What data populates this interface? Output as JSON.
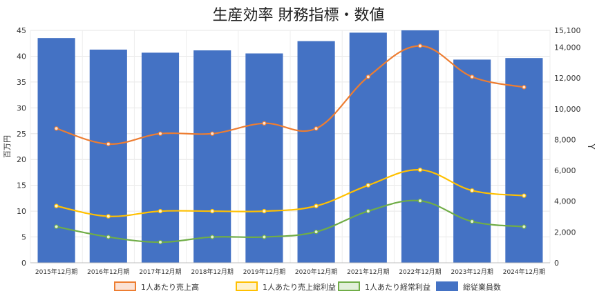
{
  "chart_data": {
    "type": "bar",
    "title": "生産効率 財務指標・数値",
    "ylabel_left": "百万円",
    "ylabel_right": "Y",
    "ylim_left": [
      0,
      45
    ],
    "ylim_right": [
      0,
      15100
    ],
    "left_ticks": [
      "0",
      "5",
      "10",
      "15",
      "20",
      "25",
      "30",
      "35",
      "40",
      "45"
    ],
    "left_tick_values": [
      0,
      5,
      10,
      15,
      20,
      25,
      30,
      35,
      40,
      45
    ],
    "right_ticks": [
      "0",
      "2,000",
      "4,000",
      "6,000",
      "8,000",
      "10,000",
      "12,000",
      "14,000",
      "15,100"
    ],
    "right_tick_values": [
      0,
      2000,
      4000,
      6000,
      8000,
      10000,
      12000,
      14000,
      15100
    ],
    "categories": [
      "2015年12月期",
      "2016年12月期",
      "2017年12月期",
      "2018年12月期",
      "2019年12月期",
      "2020年12月期",
      "2021年12月期",
      "2022年12月期",
      "2023年12月期",
      "2024年12月期"
    ],
    "grid": true,
    "legend_position": "bottom",
    "bar_series": {
      "name": "総従業員数",
      "axis": "right",
      "color": "#4472C4",
      "values": [
        14600,
        13850,
        13650,
        13800,
        13600,
        14400,
        14950,
        15100,
        13200,
        13300
      ]
    },
    "line_series": [
      {
        "name": "1人あたり売上高",
        "axis": "left",
        "color": "#ED7D31",
        "fill": "#FBE2D5",
        "values": [
          26,
          23,
          25,
          25,
          27,
          26,
          36,
          42,
          36,
          34
        ]
      },
      {
        "name": "1人あたり売上総利益",
        "axis": "left",
        "color": "#FFC000",
        "fill": "#FFF2CC",
        "values": [
          11,
          9,
          10,
          10,
          10,
          11,
          15,
          18,
          14,
          13
        ]
      },
      {
        "name": "1人あたり経常利益",
        "axis": "left",
        "color": "#70AD47",
        "fill": "#E2EFDA",
        "values": [
          7,
          5,
          4,
          5,
          5,
          6,
          10,
          12,
          8,
          7
        ]
      }
    ]
  }
}
